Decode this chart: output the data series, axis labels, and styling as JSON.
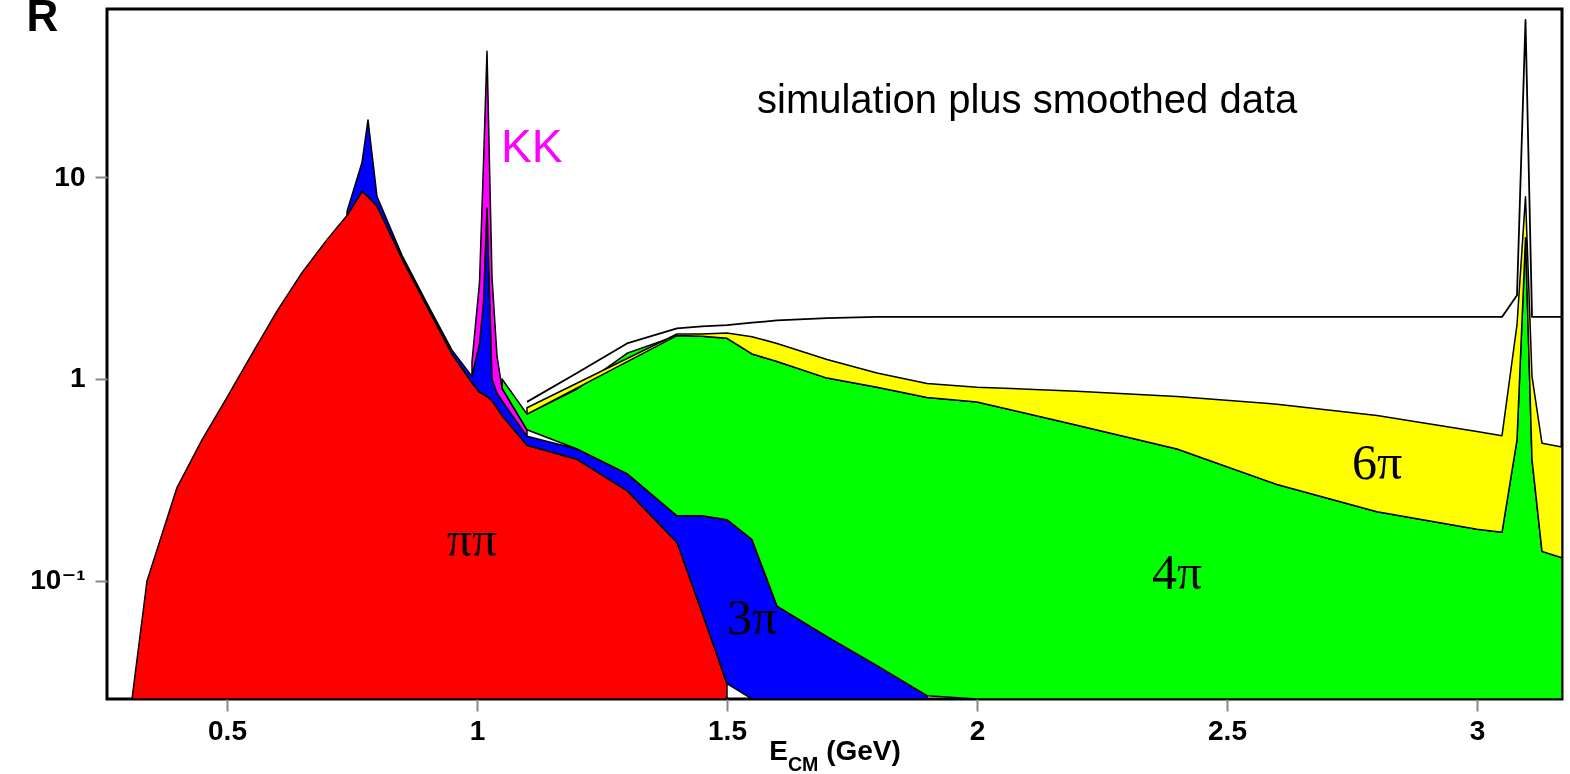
{
  "chart_data": {
    "type": "area",
    "stacked": true,
    "log": "y",
    "xlabel": "E$_{CM}$ (GeV)",
    "ylabel": "R",
    "annotations": [
      "simulation plus smoothed data"
    ],
    "xlim": [
      0.26,
      3.17
    ],
    "xticks": [
      0.5,
      1,
      1.5,
      2,
      2.5,
      3
    ],
    "ylim": [
      0.026,
      68
    ],
    "yticks": [
      {
        "value": 0.1,
        "label": "10⁻¹"
      },
      1,
      10
    ],
    "x": [
      0.31,
      0.34,
      0.4,
      0.45,
      0.5,
      0.55,
      0.6,
      0.65,
      0.7,
      0.74,
      0.77,
      0.782,
      0.8,
      0.85,
      0.9,
      0.95,
      0.99,
      1.005,
      1.013,
      1.02,
      1.03,
      1.04,
      1.05,
      1.1,
      1.2,
      1.3,
      1.4,
      1.45,
      1.5,
      1.55,
      1.6,
      1.7,
      1.8,
      1.9,
      2.0,
      2.2,
      2.4,
      2.6,
      2.8,
      3.0,
      3.05,
      3.08,
      3.097,
      3.11,
      3.13,
      3.17
    ],
    "series": [
      {
        "name": "ππ",
        "color": "#ff0000",
        "values": [
          0.026,
          0.1,
          0.29,
          0.5,
          0.81,
          1.33,
          2.17,
          3.36,
          4.9,
          6.45,
          8.5,
          8.0,
          7.2,
          3.95,
          2.29,
          1.33,
          0.96,
          0.86,
          0.84,
          0.82,
          0.78,
          0.72,
          0.66,
          0.47,
          0.4,
          0.28,
          0.155,
          0.07,
          0.031,
          null,
          null,
          null,
          null,
          null,
          null,
          null,
          null,
          null,
          null,
          null,
          null,
          null,
          null,
          null,
          null,
          null
        ]
      },
      {
        "name": "3π",
        "color": "#0000ff",
        "values": [
          null,
          null,
          null,
          null,
          null,
          null,
          null,
          null,
          null,
          0.3,
          3.3,
          11.2,
          0.8,
          0.15,
          0.08,
          0.06,
          0.07,
          0.64,
          1.56,
          6.2,
          0.22,
          0.13,
          0.12,
          0.05,
          0.05,
          0.06,
          0.055,
          0.14,
          0.17,
          0.16,
          0.075,
          0.053,
          0.038,
          0.027,
          null,
          null,
          null,
          null,
          null,
          null,
          null,
          null,
          null,
          null,
          null,
          null
        ]
      },
      {
        "name": "KK",
        "color": "#ff00ff",
        "values": [
          null,
          null,
          null,
          null,
          null,
          null,
          null,
          null,
          null,
          null,
          null,
          null,
          null,
          null,
          null,
          null,
          0.19,
          1.5,
          9.4,
          35,
          2.2,
          0.45,
          0.12,
          0.04,
          null,
          null,
          null,
          null,
          null,
          null,
          null,
          null,
          null,
          null,
          null,
          null,
          null,
          null,
          null,
          null,
          null,
          null,
          null,
          null,
          null,
          null
        ]
      },
      {
        "name": "4π",
        "color": "#00ff00",
        "values": [
          null,
          null,
          null,
          null,
          null,
          null,
          null,
          null,
          null,
          null,
          null,
          null,
          null,
          null,
          null,
          null,
          null,
          null,
          null,
          null,
          null,
          null,
          0.1,
          0.11,
          0.44,
          1.0,
          1.43,
          1.42,
          1.39,
          1.17,
          1.145,
          0.957,
          0.872,
          0.783,
          0.77,
          0.59,
          0.45,
          0.3,
          0.22,
          0.18,
          0.174,
          0.5,
          5,
          0.4,
          0.14,
          0.13
        ]
      },
      {
        "name": "6π",
        "color": "#ffff00",
        "values": [
          null,
          null,
          null,
          null,
          null,
          null,
          null,
          null,
          null,
          null,
          null,
          null,
          null,
          null,
          null,
          null,
          null,
          null,
          null,
          null,
          null,
          null,
          null,
          0.05,
          null,
          null,
          0.03,
          0.04,
          0.1,
          0.29,
          0.28,
          0.24,
          0.16,
          0.14,
          0.14,
          0.28,
          0.37,
          0.45,
          0.44,
          0.37,
          0.35,
          1.36,
          3,
          0.63,
          0.34,
          0.33
        ]
      },
      {
        "type": "line",
        "color": "#000000",
        "values": [
          null,
          null,
          null,
          null,
          null,
          null,
          null,
          null,
          null,
          null,
          null,
          null,
          null,
          null,
          null,
          null,
          null,
          null,
          null,
          null,
          null,
          null,
          null,
          0.77,
          1.07,
          1.5,
          1.78,
          1.82,
          1.85,
          1.9,
          1.95,
          2.0,
          2.03,
          2.03,
          2.03,
          2.03,
          2.03,
          2.03,
          2.03,
          2.03,
          2.03,
          2.6,
          60,
          2.03,
          2.03,
          2.03
        ]
      }
    ]
  }
}
